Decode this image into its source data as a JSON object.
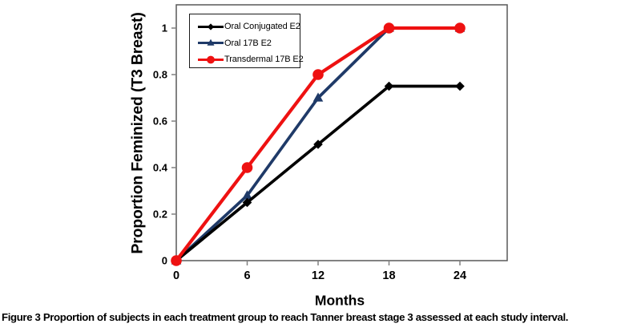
{
  "figure": {
    "caption_label": "Figure 3",
    "caption_text": "Proportion of subjects in each treatment group to reach Tanner breast stage 3 assessed at each study interval."
  },
  "chart_data": {
    "type": "line",
    "title": "",
    "xlabel": "Months",
    "ylabel": "Proportion Feminized (T3 Breast)",
    "x": [
      0,
      6,
      12,
      18,
      24
    ],
    "series": [
      {
        "name": "Oral Conjugated E2",
        "color": "#000000",
        "marker": "diamond",
        "values": [
          0,
          0.25,
          0.5,
          0.75,
          0.75
        ]
      },
      {
        "name": "Oral 17B E2",
        "color": "#1f3a68",
        "marker": "triangle",
        "values": [
          0,
          0.28,
          0.7,
          1.0,
          1.0
        ]
      },
      {
        "name": "Transdermal 17B E2",
        "color": "#ee1111",
        "marker": "circle",
        "values": [
          0,
          0.4,
          0.8,
          1.0,
          1.0
        ]
      }
    ],
    "xlim": [
      0,
      28
    ],
    "ylim": [
      0,
      1.1
    ],
    "x_ticks": [
      0,
      6,
      12,
      18,
      24
    ],
    "y_ticks": [
      0,
      0.2,
      0.4,
      0.6,
      0.8,
      1
    ],
    "grid": false,
    "legend_position": "top-left",
    "frame_color": "#595959",
    "tick_color": "#808080"
  }
}
